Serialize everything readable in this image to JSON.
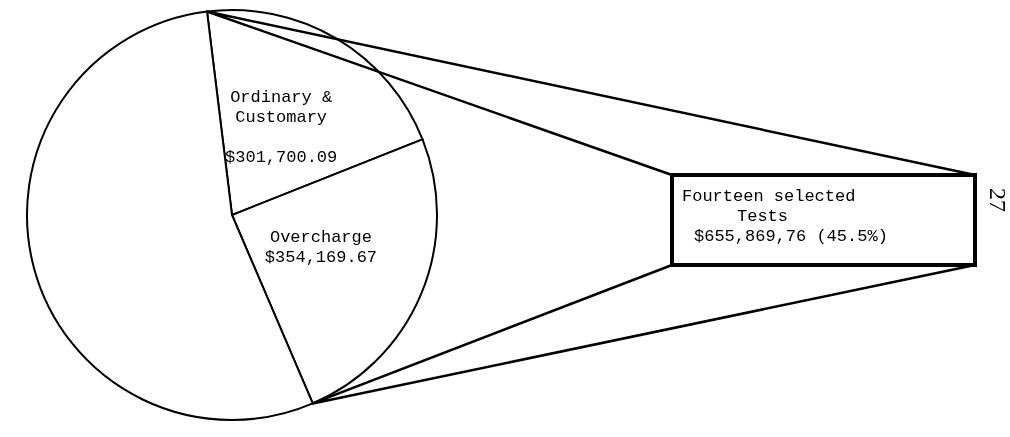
{
  "chart_data": {
    "type": "pie",
    "categories": [
      "Ordinary & Customary",
      "Overcharge",
      null
    ],
    "values": [
      301700.09,
      354169.67,
      785602
    ],
    "value_labels": [
      "$301,700.09",
      "$354,169.67",
      null
    ],
    "colors": [
      "#ffffff",
      "#ffffff",
      "#ffffff"
    ],
    "annotations": [
      "Fourteen selected\nTests\n$655,869,76 (45.5%)",
      "27"
    ]
  }
}
